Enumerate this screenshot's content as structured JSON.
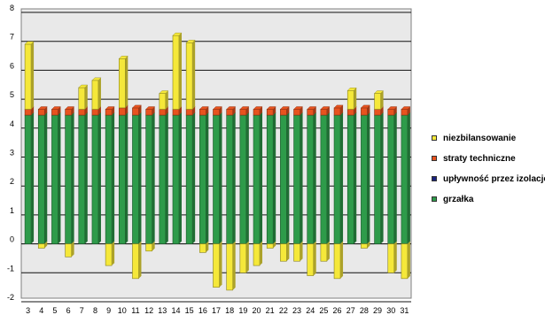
{
  "chart_data": {
    "type": "bar",
    "stacked": true,
    "categories": [
      "3",
      "4",
      "5",
      "6",
      "7",
      "8",
      "9",
      "10",
      "11",
      "12",
      "13",
      "14",
      "15",
      "16",
      "17",
      "18",
      "19",
      "20",
      "21",
      "22",
      "23",
      "24",
      "25",
      "26",
      "27",
      "28",
      "29",
      "30",
      "31"
    ],
    "ylim": [
      -2,
      8
    ],
    "yticks": [
      "-2",
      "-1",
      "0",
      "1",
      "2",
      "3",
      "4",
      "5",
      "6",
      "7",
      "8"
    ],
    "grid": true,
    "legend_position": "right",
    "series": [
      {
        "name": "grzałka",
        "color": "#2e9b4a",
        "values": [
          4.45,
          4.45,
          4.45,
          4.45,
          4.45,
          4.45,
          4.45,
          4.45,
          4.45,
          4.45,
          4.45,
          4.45,
          4.45,
          4.45,
          4.45,
          4.45,
          4.45,
          4.45,
          4.45,
          4.45,
          4.45,
          4.45,
          4.45,
          4.45,
          4.45,
          4.45,
          4.45,
          4.45,
          4.45
        ]
      },
      {
        "name": "upływność przez izolację",
        "color": "#1a237e",
        "values": [
          0,
          0,
          0,
          0,
          0,
          0,
          0,
          0,
          0,
          0,
          0,
          0,
          0,
          0,
          0,
          0,
          0,
          0,
          0,
          0,
          0,
          0,
          0,
          0,
          0,
          0,
          0,
          0,
          0
        ]
      },
      {
        "name": "straty techniczne",
        "color": "#e8531f",
        "values": [
          0.2,
          0.2,
          0.2,
          0.2,
          0.2,
          0.2,
          0.2,
          0.25,
          0.25,
          0.2,
          0.2,
          0.2,
          0.2,
          0.2,
          0.2,
          0.2,
          0.2,
          0.2,
          0.2,
          0.2,
          0.2,
          0.2,
          0.2,
          0.25,
          0.2,
          0.25,
          0.2,
          0.2,
          0.2
        ]
      },
      {
        "name": "niezbilansowanie",
        "color": "#f5e83a",
        "values": [
          2.25,
          -0.15,
          0,
          -0.45,
          0.75,
          1.0,
          -0.75,
          1.7,
          -1.2,
          -0.25,
          0.55,
          2.55,
          2.3,
          -0.3,
          -1.5,
          -1.6,
          -1.0,
          -0.75,
          -0.15,
          -0.6,
          -0.6,
          -1.1,
          -0.6,
          -1.2,
          0.65,
          -0.15,
          0.55,
          -1.0,
          -1.2
        ]
      }
    ]
  }
}
